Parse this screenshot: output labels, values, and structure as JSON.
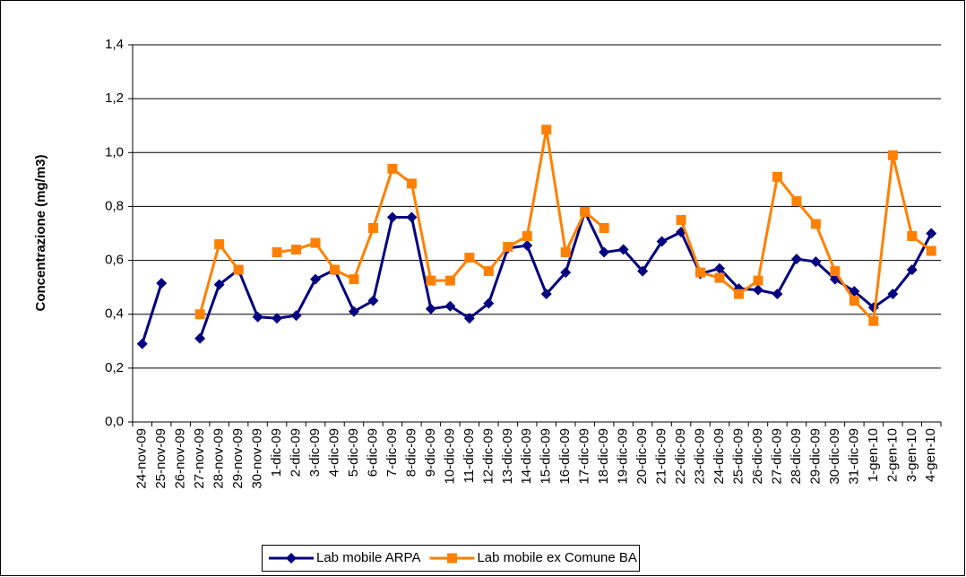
{
  "chart_data": {
    "type": "line",
    "y_label": "Concentrazione (mg/m3)",
    "categories": [
      "24-nov-09",
      "25-nov-09",
      "26-nov-09",
      "27-nov-09",
      "28-nov-09",
      "29-nov-09",
      "30-nov-09",
      "1-dic-09",
      "2-dic-09",
      "3-dic-09",
      "4-dic-09",
      "5-dic-09",
      "6-dic-09",
      "7-dic-09",
      "8-dic-09",
      "9-dic-09",
      "10-dic-09",
      "11-dic-09",
      "12-dic-09",
      "13-dic-09",
      "14-dic-09",
      "15-dic-09",
      "16-dic-09",
      "17-dic-09",
      "18-dic-09",
      "19-dic-09",
      "20-dic-09",
      "21-dic-09",
      "22-dic-09",
      "23-dic-09",
      "24-dic-09",
      "25-dic-09",
      "26-dic-09",
      "27-dic-09",
      "28-dic-09",
      "29-dic-09",
      "30-dic-09",
      "31-dic-09",
      "1-gen-10",
      "2-gen-10",
      "3-gen-10",
      "4-gen-10"
    ],
    "series": [
      {
        "name": "Lab mobile ARPA",
        "color": "#000080",
        "marker": "diamond",
        "values": [
          0.29,
          0.515,
          null,
          0.31,
          0.51,
          0.565,
          0.39,
          0.385,
          0.395,
          0.53,
          0.565,
          0.41,
          0.45,
          0.76,
          0.76,
          0.42,
          0.43,
          0.385,
          0.44,
          0.645,
          0.655,
          0.475,
          0.555,
          0.78,
          0.63,
          0.64,
          0.56,
          0.67,
          0.705,
          0.55,
          0.57,
          0.495,
          0.49,
          0.475,
          0.605,
          0.595,
          0.53,
          0.485,
          0.425,
          0.475,
          0.565,
          0.7
        ]
      },
      {
        "name": "Lab mobile ex Comune BA",
        "color": "#FF8000",
        "marker": "square",
        "values": [
          null,
          null,
          null,
          0.4,
          0.66,
          0.565,
          null,
          0.63,
          0.64,
          0.665,
          0.565,
          0.53,
          0.72,
          0.94,
          0.885,
          0.525,
          0.525,
          0.61,
          0.56,
          0.65,
          0.69,
          1.085,
          0.63,
          0.78,
          0.72,
          null,
          null,
          null,
          0.75,
          0.555,
          0.535,
          0.475,
          0.525,
          0.91,
          0.82,
          0.735,
          0.56,
          0.45,
          0.375,
          0.99,
          0.69,
          0.635
        ]
      }
    ],
    "ylim": [
      0,
      1.4
    ],
    "yticks": [
      {
        "value": 0,
        "label": "0,0"
      },
      {
        "value": 0.2,
        "label": "0,2"
      },
      {
        "value": 0.4,
        "label": "0,4"
      },
      {
        "value": 0.6,
        "label": "0,6"
      },
      {
        "value": 0.8,
        "label": "0,8"
      },
      {
        "value": 1,
        "label": "1,0"
      },
      {
        "value": 1.2,
        "label": "1,2"
      },
      {
        "value": 1.4,
        "label": "1,4"
      }
    ],
    "grid": true,
    "legend": "bottom"
  }
}
